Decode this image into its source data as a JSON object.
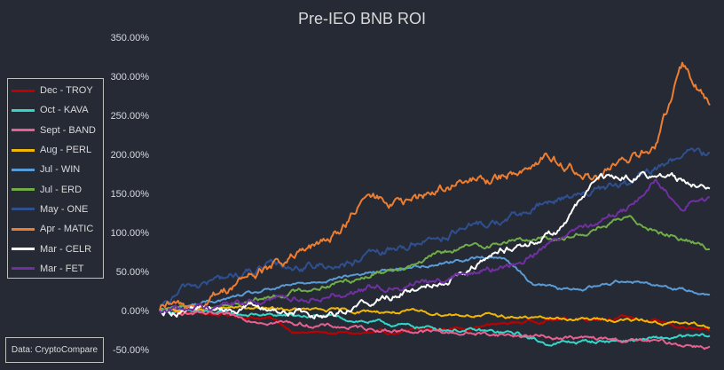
{
  "chart_data": {
    "type": "line",
    "title": "Pre-IEO BNB ROI",
    "yaxis": {
      "min": -50,
      "max": 350,
      "step": 50,
      "tick_labels": [
        "350.00%",
        "300.00%",
        "250.00%",
        "200.00%",
        "150.00%",
        "100.00%",
        "50.00%",
        "0.00%",
        "-50.00%"
      ]
    },
    "grid": false,
    "legend_position": "left",
    "series": [
      {
        "name": "Dec - TROY",
        "color": "#c00000",
        "keyframes": [
          [
            0,
            0
          ],
          [
            0.1,
            -5
          ],
          [
            0.2,
            -10
          ],
          [
            0.25,
            -28
          ],
          [
            0.4,
            -30
          ],
          [
            0.55,
            -22
          ],
          [
            0.7,
            -12
          ],
          [
            0.85,
            -8
          ],
          [
            1,
            -28
          ]
        ]
      },
      {
        "name": "Oct - KAVA",
        "color": "#33d6c7",
        "keyframes": [
          [
            0,
            0
          ],
          [
            0.15,
            -5
          ],
          [
            0.3,
            -8
          ],
          [
            0.45,
            -20
          ],
          [
            0.55,
            -25
          ],
          [
            0.65,
            -30
          ],
          [
            0.7,
            -42
          ],
          [
            0.85,
            -38
          ],
          [
            1,
            -33
          ]
        ]
      },
      {
        "name": "Sept - BAND",
        "color": "#e8608f",
        "keyframes": [
          [
            0,
            0
          ],
          [
            0.15,
            -10
          ],
          [
            0.3,
            -20
          ],
          [
            0.45,
            -26
          ],
          [
            0.6,
            -30
          ],
          [
            0.75,
            -35
          ],
          [
            0.9,
            -40
          ],
          [
            1,
            -46
          ]
        ]
      },
      {
        "name": "Aug - PERL",
        "color": "#f2b705",
        "keyframes": [
          [
            0,
            0
          ],
          [
            0.15,
            3
          ],
          [
            0.3,
            0
          ],
          [
            0.45,
            -2
          ],
          [
            0.55,
            -5
          ],
          [
            0.7,
            -10
          ],
          [
            0.85,
            -12
          ],
          [
            1,
            -20
          ]
        ]
      },
      {
        "name": "Jul - WIN",
        "color": "#5b9bd5",
        "keyframes": [
          [
            0,
            0
          ],
          [
            0.12,
            15
          ],
          [
            0.3,
            40
          ],
          [
            0.45,
            55
          ],
          [
            0.55,
            65
          ],
          [
            0.62,
            70
          ],
          [
            0.68,
            35
          ],
          [
            0.75,
            25
          ],
          [
            0.85,
            40
          ],
          [
            0.93,
            30
          ],
          [
            1,
            22
          ]
        ]
      },
      {
        "name": "Jul - ERD",
        "color": "#70ad47",
        "keyframes": [
          [
            0,
            0
          ],
          [
            0.15,
            10
          ],
          [
            0.35,
            40
          ],
          [
            0.55,
            80
          ],
          [
            0.65,
            90
          ],
          [
            0.75,
            95
          ],
          [
            0.85,
            118
          ],
          [
            0.92,
            100
          ],
          [
            1,
            80
          ]
        ]
      },
      {
        "name": "May - ONE",
        "color": "#2f4f8f",
        "keyframes": [
          [
            0,
            0
          ],
          [
            0.05,
            30
          ],
          [
            0.2,
            55
          ],
          [
            0.35,
            60
          ],
          [
            0.5,
            95
          ],
          [
            0.65,
            120
          ],
          [
            0.75,
            150
          ],
          [
            0.85,
            160
          ],
          [
            0.95,
            200
          ],
          [
            1,
            200
          ]
        ]
      },
      {
        "name": "Apr - MATIC",
        "color": "#ed7d31",
        "keyframes": [
          [
            0,
            0
          ],
          [
            0.08,
            10
          ],
          [
            0.15,
            40
          ],
          [
            0.2,
            55
          ],
          [
            0.3,
            85
          ],
          [
            0.38,
            145
          ],
          [
            0.45,
            135
          ],
          [
            0.52,
            160
          ],
          [
            0.62,
            170
          ],
          [
            0.7,
            200
          ],
          [
            0.78,
            170
          ],
          [
            0.85,
            190
          ],
          [
            0.9,
            210
          ],
          [
            0.95,
            310
          ],
          [
            1,
            265
          ]
        ]
      },
      {
        "name": "Mar - CELR",
        "color": "#ffffff",
        "keyframes": [
          [
            0,
            0
          ],
          [
            0.15,
            5
          ],
          [
            0.3,
            -5
          ],
          [
            0.45,
            25
          ],
          [
            0.55,
            50
          ],
          [
            0.62,
            75
          ],
          [
            0.72,
            100
          ],
          [
            0.8,
            170
          ],
          [
            0.9,
            175
          ],
          [
            1,
            160
          ]
        ]
      },
      {
        "name": "Mar - FET",
        "color": "#7030a0",
        "keyframes": [
          [
            0,
            0
          ],
          [
            0.15,
            10
          ],
          [
            0.3,
            20
          ],
          [
            0.45,
            35
          ],
          [
            0.55,
            45
          ],
          [
            0.65,
            60
          ],
          [
            0.75,
            105
          ],
          [
            0.85,
            130
          ],
          [
            0.9,
            165
          ],
          [
            0.95,
            135
          ],
          [
            1,
            145
          ]
        ]
      }
    ],
    "source": "Data: CryptoCompare"
  }
}
